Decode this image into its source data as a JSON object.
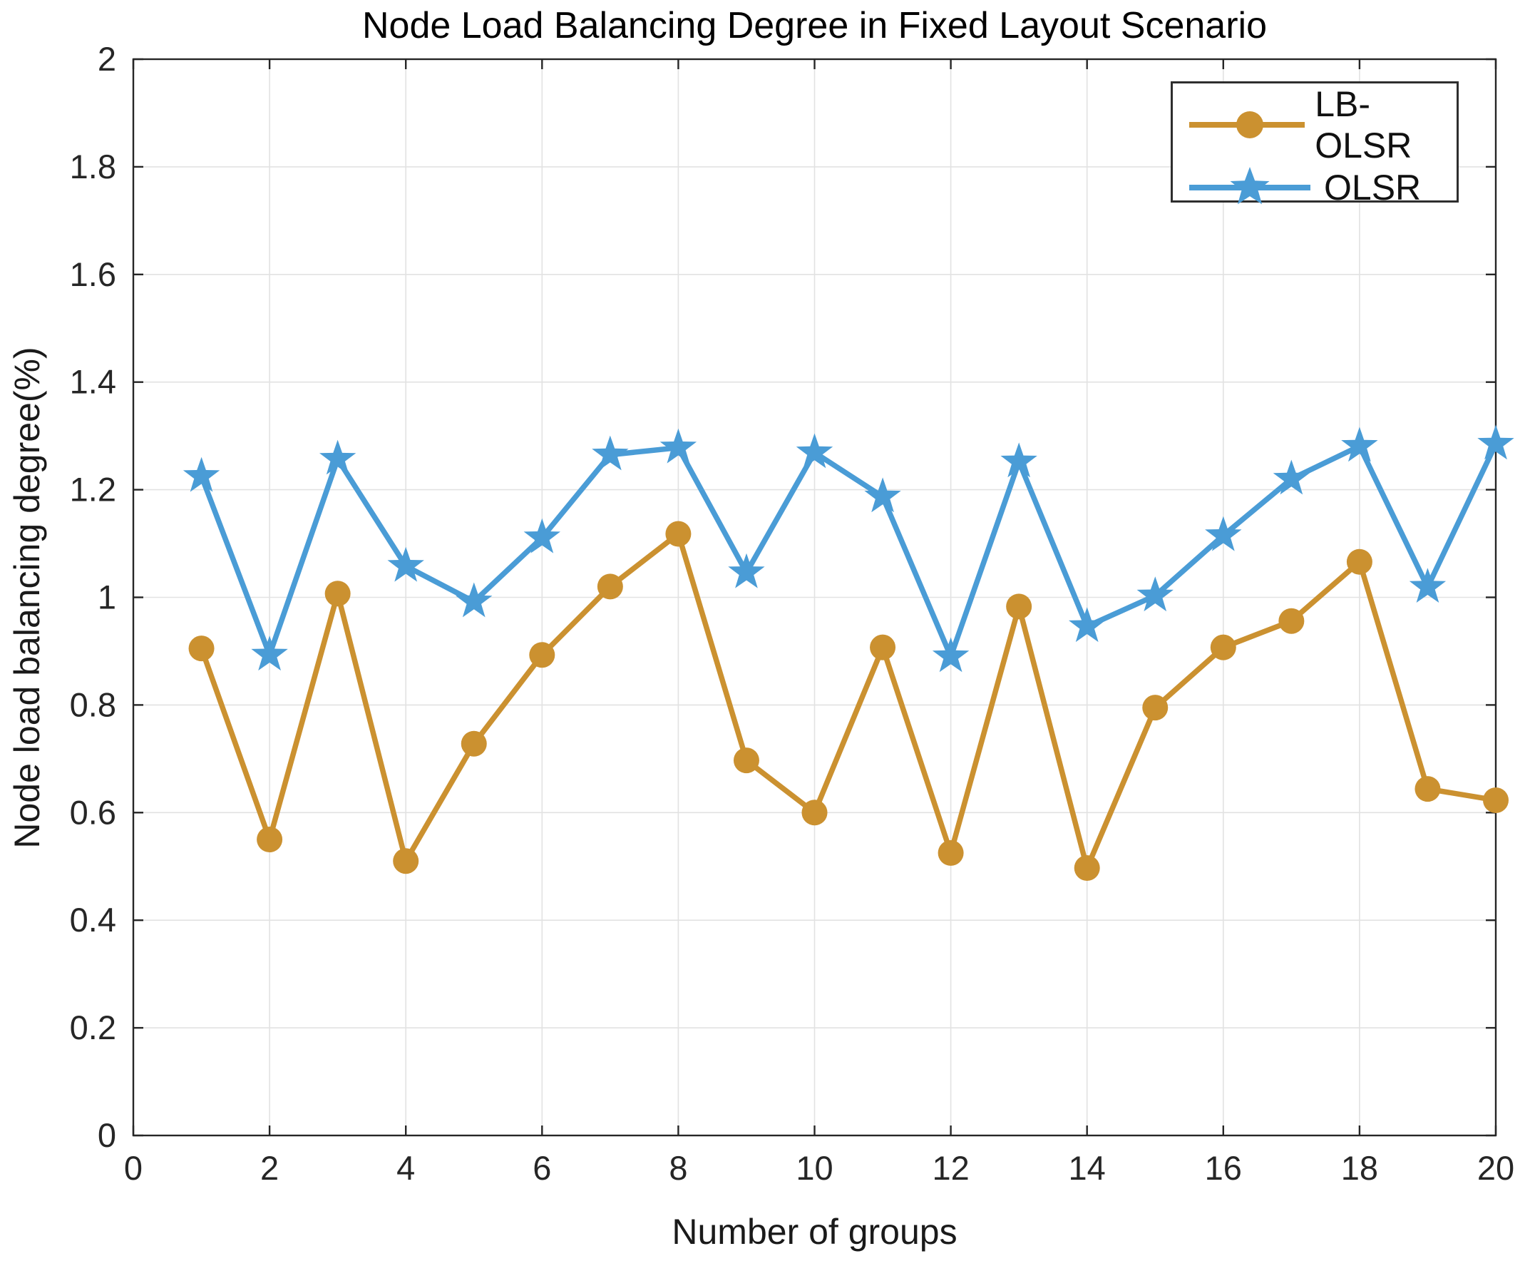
{
  "chart_data": {
    "type": "line",
    "title": "Node Load Balancing Degree in Fixed Layout Scenario",
    "xlabel": "Number of groups",
    "ylabel": "Node load balancing degree(%)",
    "xlim": [
      0,
      20
    ],
    "ylim": [
      0,
      2
    ],
    "x_tick_labels": [
      "0",
      "2",
      "4",
      "6",
      "8",
      "10",
      "12",
      "14",
      "16",
      "18",
      "20"
    ],
    "y_tick_labels": [
      "0",
      "0.2",
      "0.4",
      "0.6",
      "0.8",
      "1",
      "1.2",
      "1.4",
      "1.6",
      "1.8",
      "2"
    ],
    "grid": true,
    "legend_position": "top-right",
    "axis_color": "#262626",
    "grid_color": "#e2e2e2",
    "x": [
      1,
      2,
      3,
      4,
      5,
      6,
      7,
      8,
      9,
      10,
      11,
      12,
      13,
      14,
      15,
      16,
      17,
      18,
      19,
      20
    ],
    "series": [
      {
        "name": "LB-OLSR",
        "color": "#cb9130",
        "marker": "circle",
        "values": [
          0.905,
          0.55,
          1.007,
          0.51,
          0.728,
          0.893,
          1.02,
          1.118,
          0.697,
          0.6,
          0.907,
          0.525,
          0.983,
          0.497,
          0.795,
          0.907,
          0.956,
          1.066,
          0.644,
          0.623
        ]
      },
      {
        "name": "OLSR",
        "color": "#4a9cd6",
        "marker": "star",
        "values": [
          1.225,
          0.893,
          1.257,
          1.058,
          0.992,
          1.111,
          1.265,
          1.278,
          1.046,
          1.269,
          1.187,
          0.89,
          1.252,
          0.946,
          1.003,
          1.115,
          1.22,
          1.281,
          1.019,
          1.285
        ]
      }
    ]
  }
}
